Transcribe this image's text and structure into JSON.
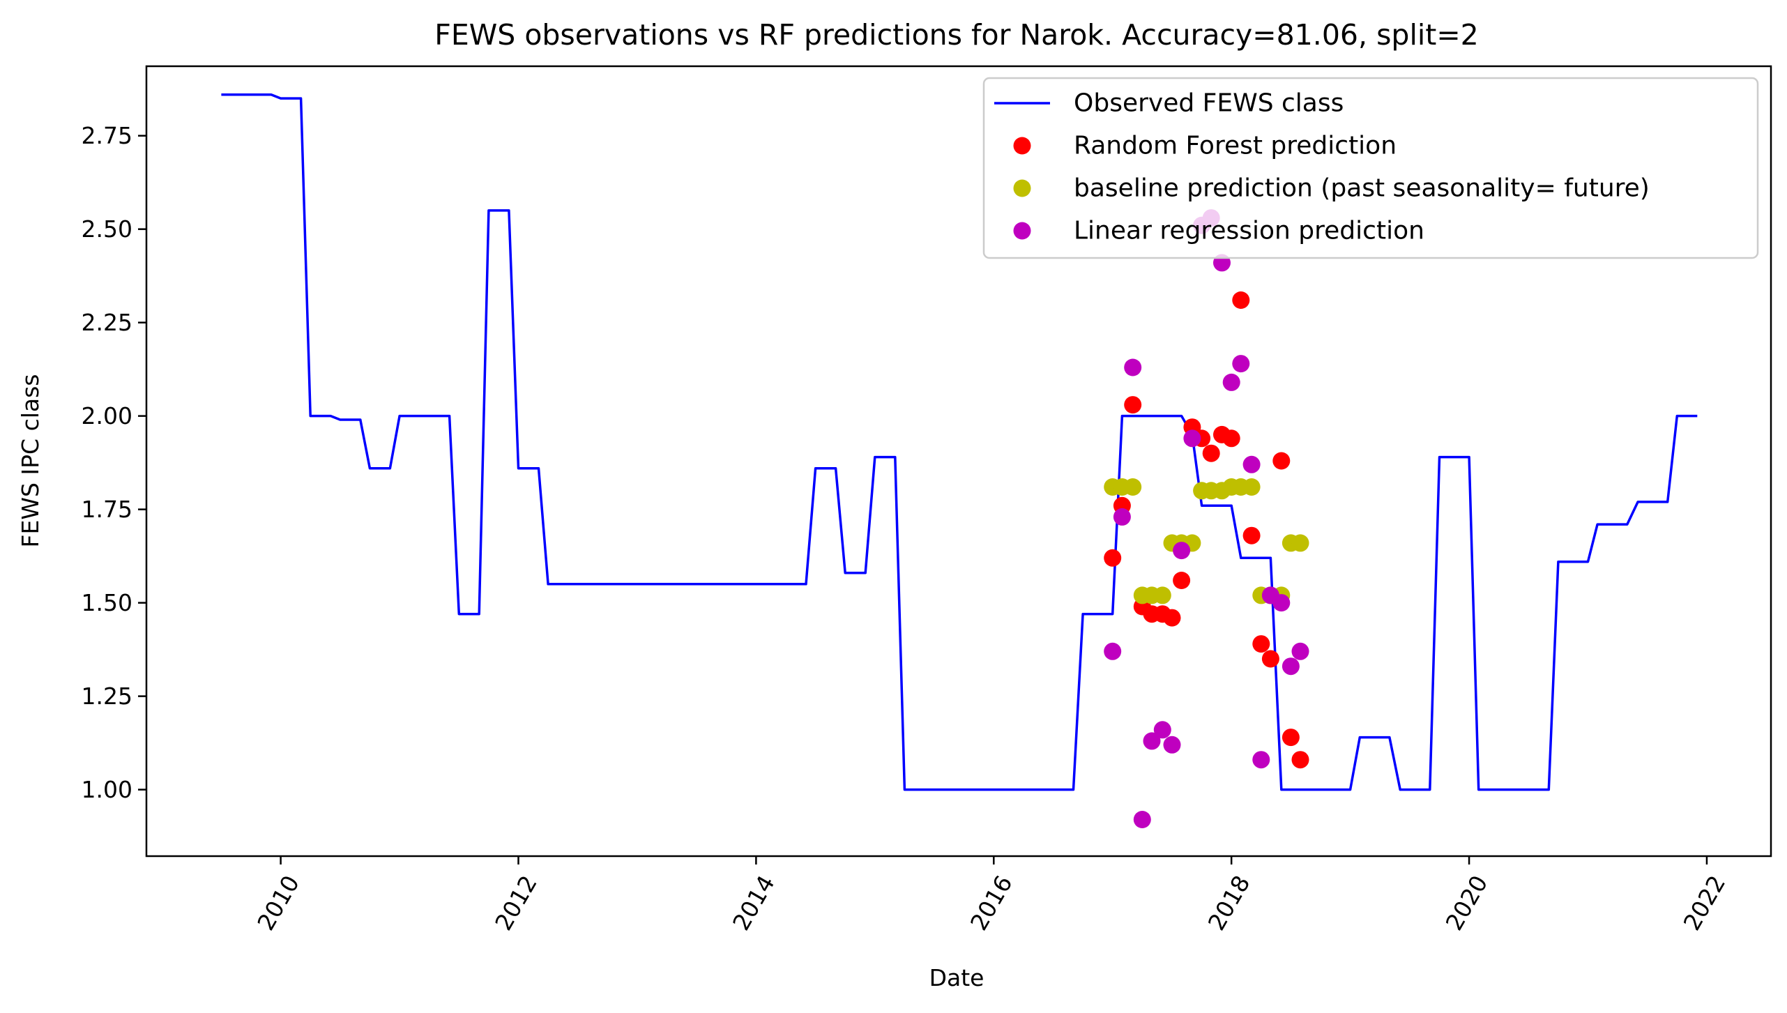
{
  "chart_data": {
    "type": "line",
    "title": "FEWS observations vs RF predictions for Narok. Accuracy=81.06, split=2",
    "xlabel": "Date",
    "ylabel": "FEWS IPC class",
    "xlim": [
      2008.87,
      2022.54
    ],
    "ylim": [
      0.822,
      2.936
    ],
    "x_ticks": [
      2010,
      2012,
      2014,
      2016,
      2018,
      2020,
      2022
    ],
    "y_ticks": [
      1.0,
      1.25,
      1.5,
      1.75,
      2.0,
      2.25,
      2.5,
      2.75
    ],
    "grid": false,
    "legend_position": "upper right",
    "series": [
      {
        "name": "Observed FEWS class",
        "type": "line",
        "color": "#0000ff",
        "x": [
          2009.5,
          2009.92,
          2010.0,
          2010.17,
          2010.25,
          2010.42,
          2010.5,
          2010.67,
          2010.75,
          2010.92,
          2011.0,
          2011.42,
          2011.5,
          2011.67,
          2011.75,
          2011.92,
          2012.0,
          2012.17,
          2012.25,
          2014.42,
          2014.5,
          2014.67,
          2014.75,
          2014.92,
          2015.0,
          2015.17,
          2015.25,
          2016.67,
          2016.75,
          2017.0,
          2017.08,
          2017.58,
          2017.67,
          2017.75,
          2017.83,
          2018.0,
          2018.08,
          2018.33,
          2018.42,
          2019.0,
          2019.08,
          2019.33,
          2019.42,
          2019.67,
          2019.75,
          2020.0,
          2020.08,
          2020.67,
          2020.75,
          2021.0,
          2021.08,
          2021.33,
          2021.42,
          2021.67,
          2021.75,
          2021.92
        ],
        "y": [
          2.86,
          2.86,
          2.85,
          2.85,
          2.0,
          2.0,
          1.99,
          1.99,
          1.86,
          1.86,
          2.0,
          2.0,
          1.47,
          1.47,
          2.55,
          2.55,
          1.86,
          1.86,
          1.55,
          1.55,
          1.86,
          1.86,
          1.58,
          1.58,
          1.89,
          1.89,
          1.0,
          1.0,
          1.47,
          1.47,
          2.0,
          2.0,
          1.95,
          1.76,
          1.76,
          1.76,
          1.62,
          1.62,
          1.0,
          1.0,
          1.14,
          1.14,
          1.0,
          1.0,
          1.89,
          1.89,
          1.0,
          1.0,
          1.61,
          1.61,
          1.71,
          1.71,
          1.77,
          1.77,
          2.0,
          2.0
        ]
      },
      {
        "name": "Random Forest prediction",
        "type": "scatter",
        "color": "#ff0000",
        "x": [
          2017.0,
          2017.08,
          2017.17,
          2017.25,
          2017.33,
          2017.42,
          2017.5,
          2017.58,
          2017.67,
          2017.75,
          2017.83,
          2017.92,
          2018.0,
          2018.08,
          2018.17,
          2018.25,
          2018.33,
          2018.42,
          2018.5,
          2018.58
        ],
        "y": [
          1.62,
          1.76,
          2.03,
          1.49,
          1.47,
          1.47,
          1.46,
          1.56,
          1.97,
          1.94,
          1.9,
          1.95,
          1.94,
          2.31,
          1.68,
          1.39,
          1.35,
          1.88,
          1.14,
          1.08
        ]
      },
      {
        "name": "baseline prediction (past seasonality= future)",
        "type": "scatter",
        "color": "#bfbf00",
        "x": [
          2017.0,
          2017.08,
          2017.17,
          2017.25,
          2017.33,
          2017.42,
          2017.5,
          2017.58,
          2017.67,
          2017.75,
          2017.83,
          2017.92,
          2018.0,
          2018.08,
          2018.17,
          2018.25,
          2018.33,
          2018.42,
          2018.5,
          2018.58
        ],
        "y": [
          1.81,
          1.81,
          1.81,
          1.52,
          1.52,
          1.52,
          1.66,
          1.66,
          1.66,
          1.8,
          1.8,
          1.8,
          1.81,
          1.81,
          1.81,
          1.52,
          1.52,
          1.52,
          1.66,
          1.66
        ]
      },
      {
        "name": "Linear regression prediction",
        "type": "scatter",
        "color": "#bf00bf",
        "x": [
          2017.0,
          2017.08,
          2017.17,
          2017.25,
          2017.33,
          2017.42,
          2017.5,
          2017.58,
          2017.67,
          2017.75,
          2017.83,
          2017.92,
          2018.0,
          2018.08,
          2018.17,
          2018.25,
          2018.33,
          2018.42,
          2018.5,
          2018.58
        ],
        "y": [
          1.37,
          1.73,
          2.13,
          0.92,
          1.13,
          1.16,
          1.12,
          1.64,
          1.94,
          2.51,
          2.53,
          2.41,
          2.09,
          2.14,
          1.87,
          1.08,
          1.52,
          1.5,
          1.33,
          1.37
        ]
      }
    ]
  }
}
